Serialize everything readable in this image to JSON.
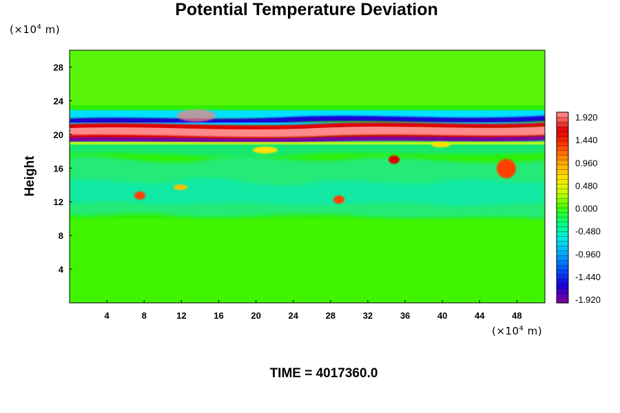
{
  "chart_data": {
    "type": "heatmap",
    "title": "Potential Temperature Deviation",
    "ylabel": "Height",
    "y_unit_label": "(×10",
    "x_unit_label": "(×10",
    "unit_exponent": "4",
    "unit_suffix": " m)",
    "x_ticks": [
      4,
      8,
      12,
      16,
      20,
      24,
      28,
      32,
      36,
      40,
      44,
      48
    ],
    "y_ticks": [
      4,
      8,
      12,
      16,
      20,
      24,
      28
    ],
    "xlim": [
      0,
      51
    ],
    "ylim": [
      0,
      30
    ],
    "colorbar": {
      "labels": [
        "1.920",
        "1.440",
        "0.960",
        "0.480",
        "0.000",
        "-0.480",
        "-0.960",
        "-1.440",
        "-1.920"
      ],
      "range": [
        -1.92,
        1.92
      ],
      "colors": [
        "#7a00a8",
        "#1a00d8",
        "#0050ff",
        "#00a8ff",
        "#00e8e8",
        "#00ff80",
        "#40ff00",
        "#c8ff00",
        "#ffe000",
        "#ffa000",
        "#ff4000",
        "#e00000",
        "#ff8080"
      ]
    },
    "field_features": [
      {
        "feature": "background",
        "height_range": [
          0,
          30
        ],
        "value": 0.0
      },
      {
        "feature": "strong oscillating band",
        "height_range": [
          19,
          22
        ],
        "value_range": [
          -1.92,
          1.92
        ]
      },
      {
        "feature": "wavy perturbation layer",
        "height_range": [
          10,
          19
        ],
        "value_range": [
          -0.96,
          1.92
        ]
      }
    ],
    "time_label": "TIME = 4017360.0"
  }
}
